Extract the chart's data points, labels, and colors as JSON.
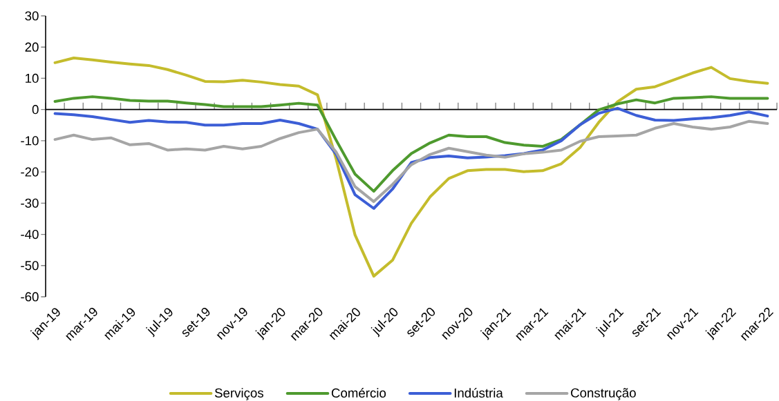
{
  "chart_data": {
    "type": "line",
    "categories": [
      "jan-19",
      null,
      "mar-19",
      null,
      "mai-19",
      null,
      "jul-19",
      null,
      "set-19",
      null,
      "nov-19",
      null,
      "jan-20",
      null,
      "mar-20",
      null,
      "mai-20",
      null,
      "jul-20",
      null,
      "set-20",
      null,
      "nov-20",
      null,
      "jan-21",
      null,
      "mar-21",
      null,
      "mai-21",
      null,
      "jul-21",
      null,
      "set-21",
      null,
      "nov-21",
      null,
      "jan-22",
      null,
      "mar-22"
    ],
    "series": [
      {
        "name": "Serviços",
        "color": "#c4bc2c",
        "values": [
          15.0,
          16.5,
          15.9,
          15.2,
          14.6,
          14.1,
          12.8,
          11.0,
          9.0,
          8.9,
          9.4,
          8.8,
          8.0,
          7.5,
          4.7,
          -16.0,
          -40.2,
          -53.4,
          -48.3,
          -36.5,
          -28.0,
          -22.1,
          -19.6,
          -19.2,
          -19.2,
          -19.9,
          -19.6,
          -17.4,
          -12.2,
          -4.1,
          2.5,
          6.5,
          7.3,
          9.5,
          11.7,
          13.5,
          9.9,
          9.0,
          8.4
        ]
      },
      {
        "name": "Comércio",
        "color": "#4e9a2e",
        "values": [
          2.6,
          3.6,
          4.1,
          3.6,
          2.9,
          2.7,
          2.7,
          2.1,
          1.6,
          0.9,
          0.9,
          0.9,
          1.4,
          2.0,
          1.4,
          -9.9,
          -20.7,
          -26.2,
          -19.6,
          -14.1,
          -10.7,
          -8.2,
          -8.7,
          -8.7,
          -10.6,
          -11.4,
          -11.8,
          -9.6,
          -4.9,
          -0.1,
          1.8,
          3.1,
          2.1,
          3.6,
          3.8,
          4.1,
          3.6,
          3.6,
          3.6
        ]
      },
      {
        "name": "Indústria",
        "color": "#3c5ed6",
        "values": [
          -1.3,
          -1.7,
          -2.3,
          -3.2,
          -4.1,
          -3.5,
          -4.0,
          -4.1,
          -5.0,
          -5.0,
          -4.5,
          -4.5,
          -3.4,
          -4.5,
          -6.3,
          -14.4,
          -27.3,
          -31.7,
          -25.5,
          -17.0,
          -15.4,
          -14.9,
          -15.5,
          -15.2,
          -14.8,
          -14.1,
          -13.0,
          -10.0,
          -4.9,
          -1.2,
          0.4,
          -1.9,
          -3.4,
          -3.5,
          -3.0,
          -2.6,
          -1.9,
          -0.8,
          -2.1
        ]
      },
      {
        "name": "Construção",
        "color": "#a5a5a5",
        "values": [
          -9.6,
          -8.2,
          -9.6,
          -9.1,
          -11.3,
          -10.9,
          -13.0,
          -12.6,
          -13.0,
          -11.8,
          -12.6,
          -11.8,
          -9.3,
          -7.4,
          -6.3,
          -13.7,
          -24.7,
          -29.5,
          -24.0,
          -17.7,
          -14.4,
          -12.4,
          -13.5,
          -14.6,
          -15.3,
          -14.2,
          -13.7,
          -13.0,
          -10.2,
          -8.7,
          -8.5,
          -8.2,
          -6.0,
          -4.5,
          -5.6,
          -6.3,
          -5.6,
          -3.8,
          -4.5
        ]
      }
    ],
    "ylim": [
      -60,
      30
    ],
    "yticks": [
      -60,
      -50,
      -40,
      -30,
      -20,
      -10,
      0,
      10,
      20,
      30
    ],
    "legend": "bottom"
  }
}
